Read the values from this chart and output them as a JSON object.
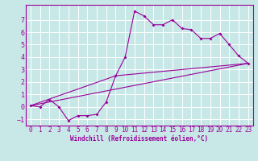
{
  "background_color": "#c8e8e8",
  "line_color": "#990099",
  "grid_color": "#ffffff",
  "xlabel": "Windchill (Refroidissement éolien,°C)",
  "xlim": [
    -0.5,
    23.5
  ],
  "ylim": [
    -1.5,
    8.2
  ],
  "yticks": [
    -1,
    0,
    1,
    2,
    3,
    4,
    5,
    6,
    7
  ],
  "xticks": [
    0,
    1,
    2,
    3,
    4,
    5,
    6,
    7,
    8,
    9,
    10,
    11,
    12,
    13,
    14,
    15,
    16,
    17,
    18,
    19,
    20,
    21,
    22,
    23
  ],
  "series1_x": [
    0,
    1,
    2,
    3,
    4,
    5,
    6,
    7,
    8,
    9,
    10,
    11,
    12,
    13,
    14,
    15,
    16,
    17,
    18,
    19,
    20,
    21,
    22,
    23
  ],
  "series1_y": [
    0.1,
    0.0,
    0.6,
    0.0,
    -1.1,
    -0.7,
    -0.7,
    -0.6,
    0.4,
    2.5,
    4.0,
    7.7,
    7.3,
    6.6,
    6.6,
    7.0,
    6.3,
    6.2,
    5.5,
    5.5,
    5.9,
    5.0,
    4.1,
    3.5
  ],
  "series2_x": [
    0,
    23
  ],
  "series2_y": [
    0.1,
    3.5
  ],
  "series3_x": [
    0,
    9,
    23
  ],
  "series3_y": [
    0.1,
    2.5,
    3.5
  ],
  "tick_fontsize": 5.5,
  "xlabel_fontsize": 5.5,
  "marker_size": 2.0,
  "line_width": 0.8
}
